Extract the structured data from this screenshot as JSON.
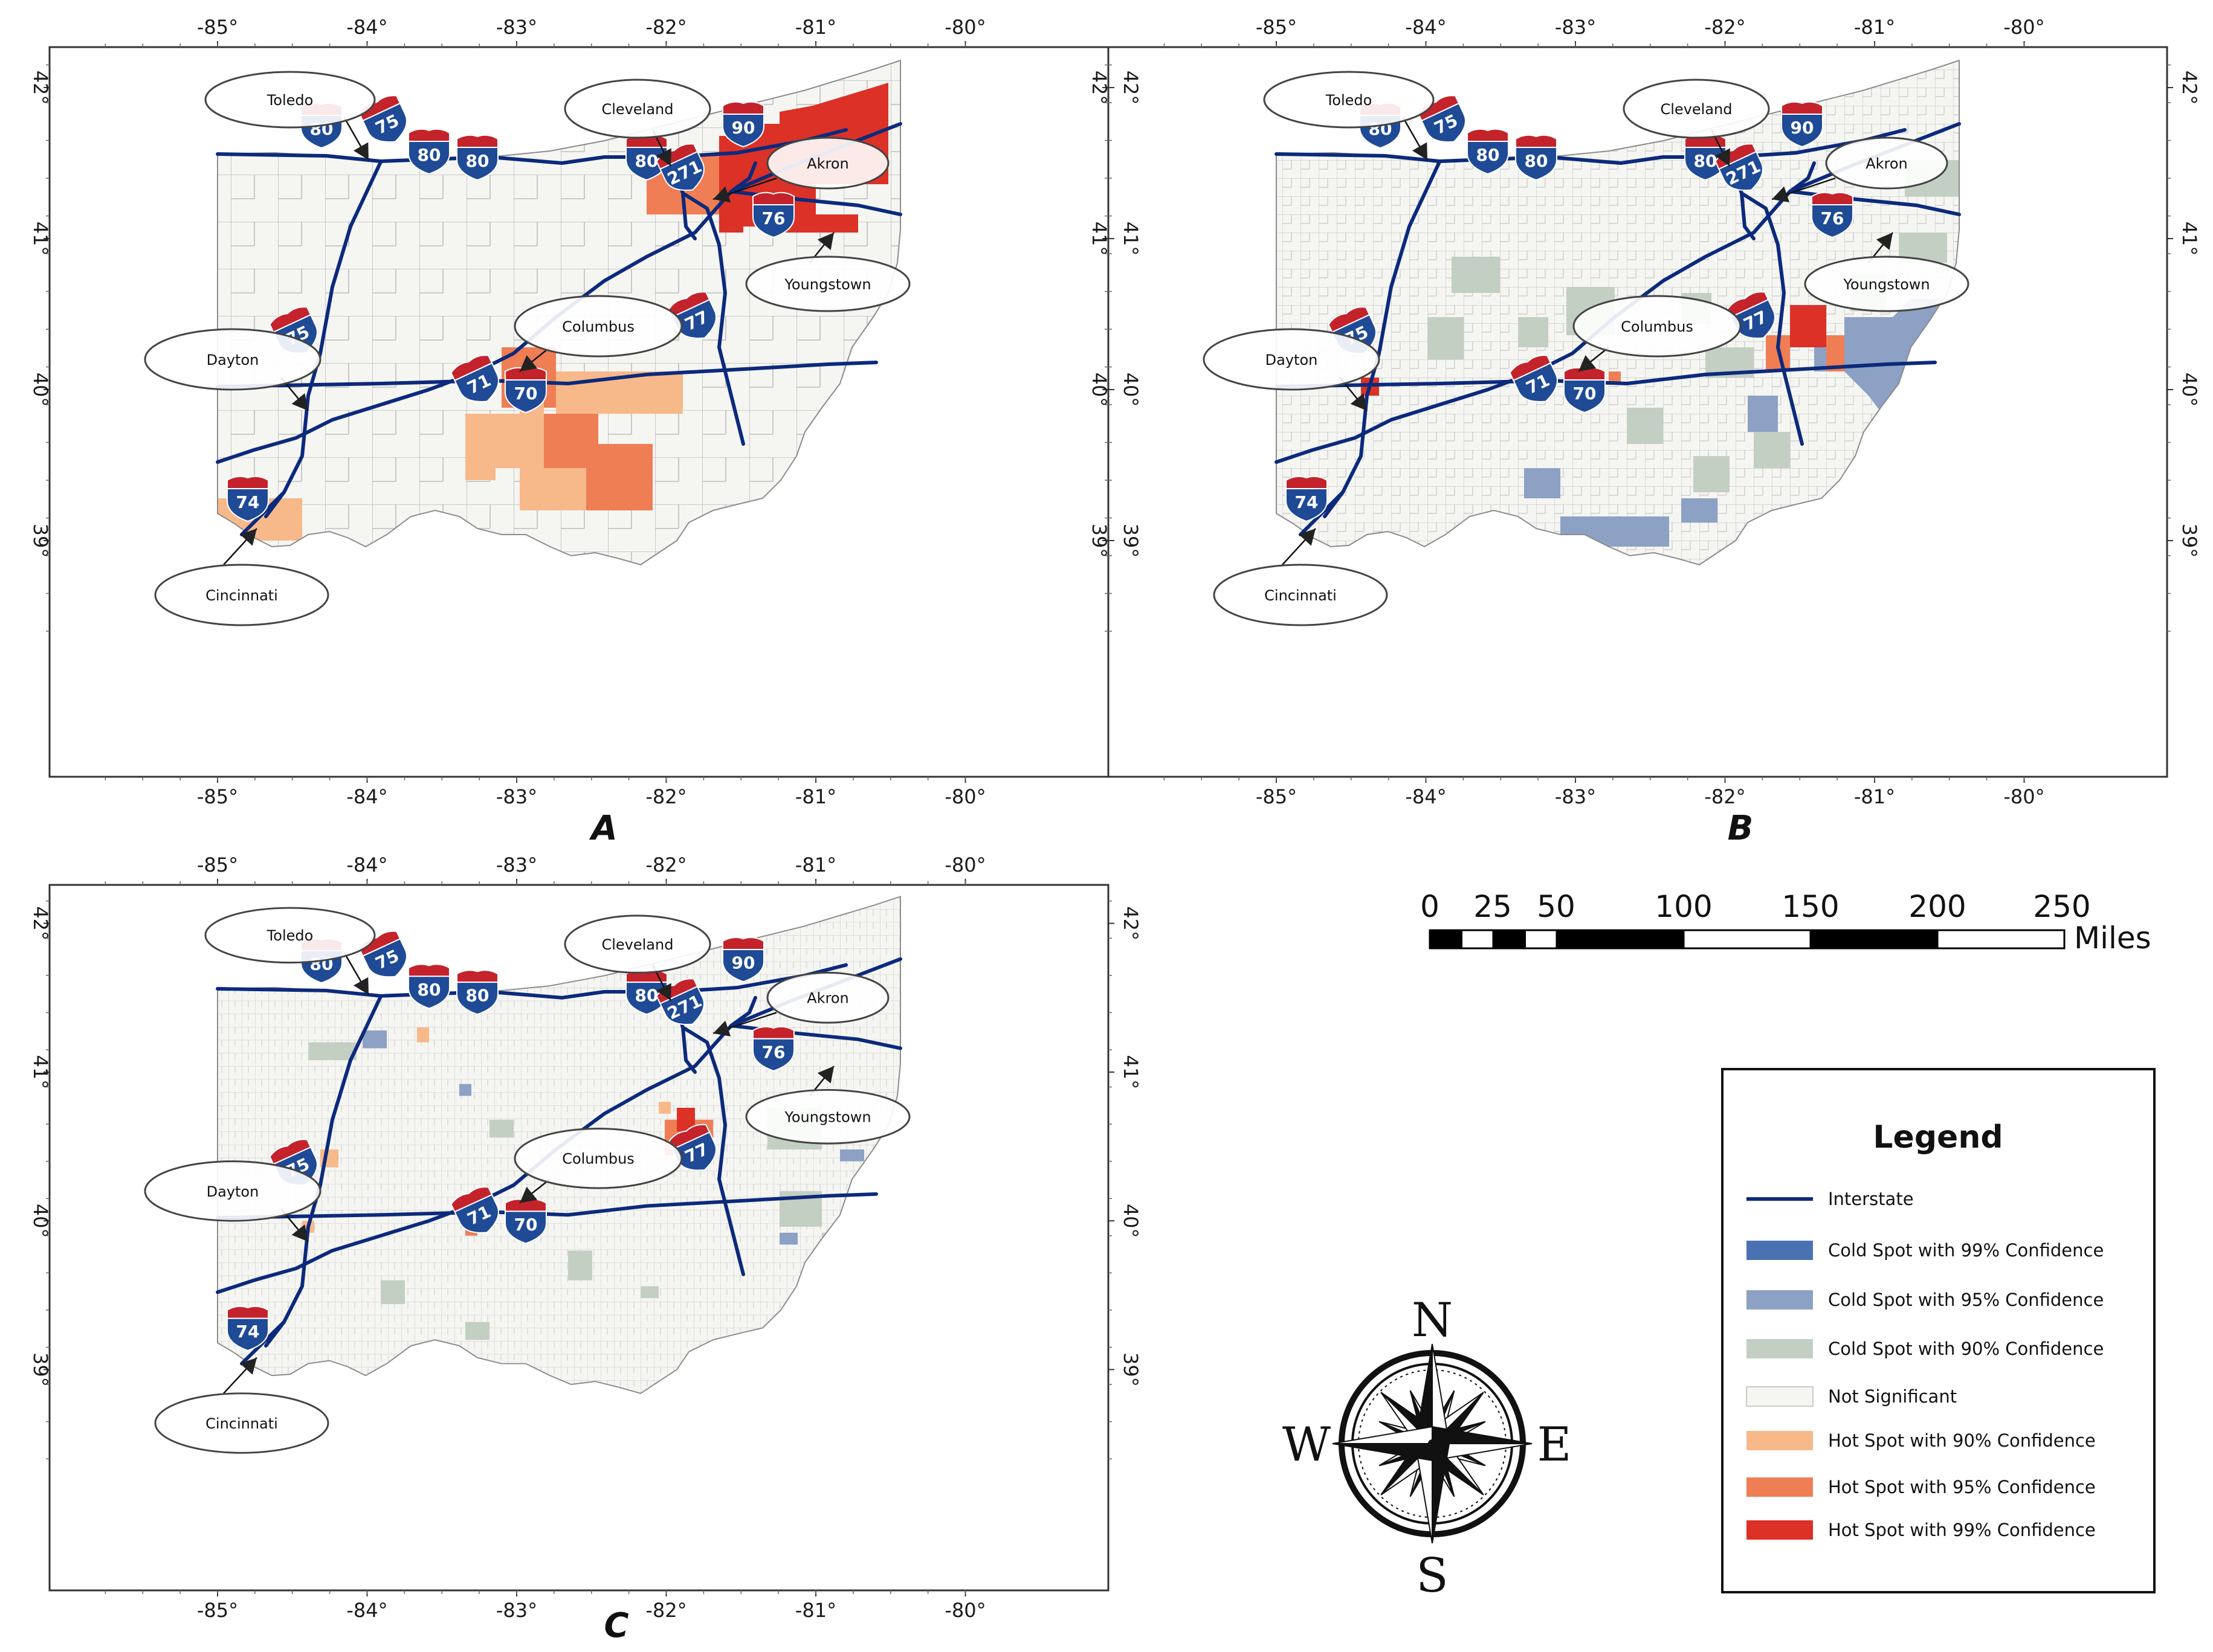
{
  "colors": {
    "interstate": "#0c2a7c",
    "cold99": "#4a72b2",
    "cold95": "#8ca1c4",
    "cold90": "#c4cfc3",
    "not_significant": "#f5f5f2",
    "hot90": "#f7b98a",
    "hot95": "#ef7e55",
    "hot99": "#dc3127",
    "shield_blue": "#1e4a96",
    "shield_red": "#c4232b"
  },
  "axis": {
    "lon_ticks": [
      "-85°",
      "-84°",
      "-83°",
      "-82°",
      "-81°",
      "-80°"
    ],
    "lat_ticks": [
      "42°",
      "41°",
      "40°",
      "39°"
    ]
  },
  "panels": [
    {
      "label": "A"
    },
    {
      "label": "B"
    },
    {
      "label": "C"
    }
  ],
  "cities": [
    "Toledo",
    "Cleveland",
    "Akron",
    "Youngstown",
    "Columbus",
    "Dayton",
    "Cincinnati"
  ],
  "shields": [
    "80",
    "75",
    "80",
    "80",
    "80",
    "90",
    "271",
    "76",
    "77",
    "75",
    "71",
    "70",
    "74"
  ],
  "scale_bar": {
    "labels": [
      "0",
      "25",
      "50",
      "100",
      "150",
      "200",
      "250"
    ],
    "unit": "Miles"
  },
  "legend": {
    "title": "Legend",
    "items": [
      {
        "key": "interstate",
        "label": "Interstate"
      },
      {
        "key": "cold99",
        "label": "Cold Spot with 99% Confidence"
      },
      {
        "key": "cold95",
        "label": "Cold Spot with 95% Confidence"
      },
      {
        "key": "cold90",
        "label": "Cold Spot with 90% Confidence"
      },
      {
        "key": "not_significant",
        "label": "Not Significant"
      },
      {
        "key": "hot90",
        "label": "Hot Spot with 90% Confidence"
      },
      {
        "key": "hot95",
        "label": "Hot Spot with 95% Confidence"
      },
      {
        "key": "hot99",
        "label": "Hot Spot with 99% Confidence"
      }
    ]
  },
  "compass": {
    "n": "N",
    "s": "S",
    "e": "E",
    "w": "W"
  }
}
